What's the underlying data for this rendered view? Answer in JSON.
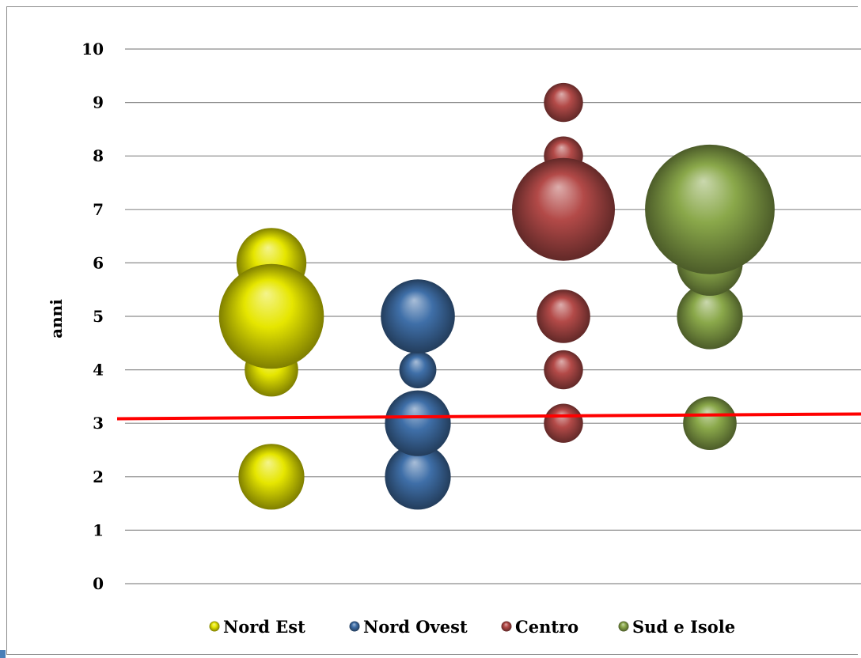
{
  "chart_data": {
    "type": "bubble",
    "title": "",
    "xlabel": "",
    "ylabel": "anni",
    "ylim": [
      0,
      10
    ],
    "yticks": [
      0,
      1,
      2,
      3,
      4,
      5,
      6,
      7,
      8,
      9,
      10
    ],
    "grid": "horizontal",
    "legend_position": "bottom",
    "reference_line": {
      "y": 3.1,
      "color": "#ff0000"
    },
    "series": [
      {
        "name": "Nord Est",
        "color": "#e6e600",
        "points": [
          {
            "y": 2,
            "size": 3.2
          },
          {
            "y": 4,
            "size": 2.6
          },
          {
            "y": 5,
            "size": 5.1
          },
          {
            "y": 6,
            "size": 3.4
          }
        ]
      },
      {
        "name": "Nord Ovest",
        "color": "#3f6fa8",
        "points": [
          {
            "y": 2,
            "size": 3.2
          },
          {
            "y": 3,
            "size": 3.2
          },
          {
            "y": 4,
            "size": 1.8
          },
          {
            "y": 5,
            "size": 3.6
          }
        ]
      },
      {
        "name": "Centro",
        "color": "#b34a48",
        "points": [
          {
            "y": 3,
            "size": 1.9
          },
          {
            "y": 4,
            "size": 1.9
          },
          {
            "y": 5,
            "size": 2.6
          },
          {
            "y": 7,
            "size": 5.0
          },
          {
            "y": 8,
            "size": 1.9
          },
          {
            "y": 9,
            "size": 1.9
          }
        ]
      },
      {
        "name": "Sud e Isole",
        "color": "#8aa84a",
        "points": [
          {
            "y": 3,
            "size": 2.6
          },
          {
            "y": 5,
            "size": 3.2
          },
          {
            "y": 6,
            "size": 3.2
          },
          {
            "y": 7,
            "size": 6.3
          }
        ]
      }
    ]
  }
}
